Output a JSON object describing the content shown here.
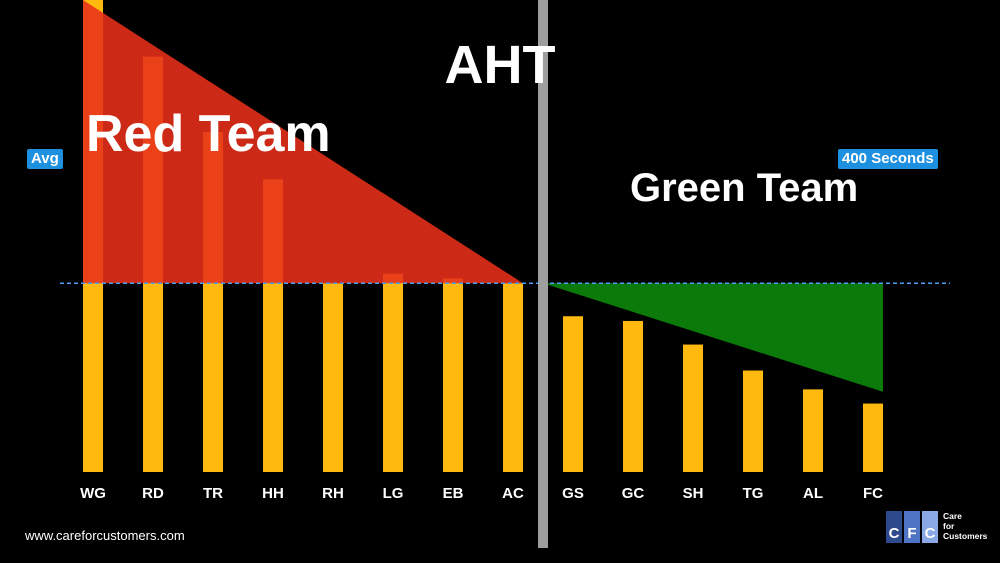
{
  "chart_data": {
    "type": "bar",
    "title": "AHT",
    "categories": [
      "WG",
      "RD",
      "TR",
      "HH",
      "RH",
      "LG",
      "EB",
      "AC",
      "GS",
      "GC",
      "SH",
      "TG",
      "AL",
      "FC"
    ],
    "values": [
      1000,
      880,
      720,
      620,
      400,
      420,
      410,
      400,
      330,
      320,
      270,
      215,
      175,
      145
    ],
    "ylim": [
      0,
      1000
    ],
    "reference_line": {
      "value": 400,
      "left_label": "Avg",
      "right_label": "400 Seconds"
    },
    "groups": [
      {
        "name": "Red Team",
        "categories": [
          "WG",
          "RD",
          "TR",
          "HH",
          "RH",
          "LG",
          "EB",
          "AC"
        ],
        "color": "#e8301a"
      },
      {
        "name": "Green Team",
        "categories": [
          "GS",
          "GC",
          "SH",
          "TG",
          "AL",
          "FC"
        ],
        "color": "#0b7a0b"
      }
    ],
    "bar_color": "#ffb90f",
    "divider_color": "#9e9e9e",
    "avg_line_color": "#4a9ff5"
  },
  "footer": {
    "url": "www.careforcustomers.com"
  },
  "logo": {
    "letters": [
      "C",
      "F",
      "C"
    ],
    "text_lines": [
      "Care",
      "for",
      "Customers"
    ]
  }
}
